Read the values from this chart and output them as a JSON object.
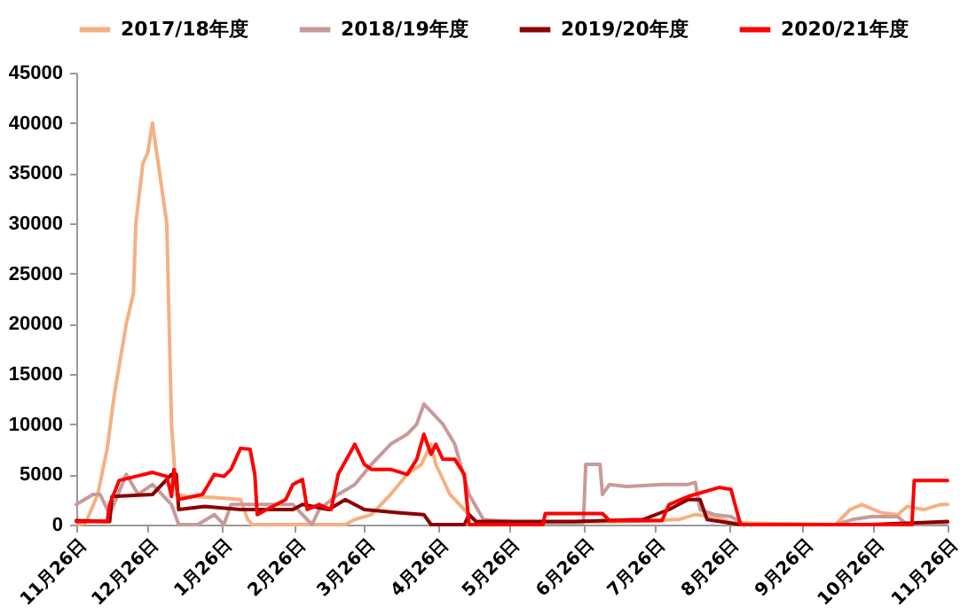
{
  "chart_data": {
    "type": "line",
    "xlim": [
      "2019-11-26",
      "2020-11-26"
    ],
    "xticks": [
      {
        "value": "2019-11-26",
        "label": "11月26日"
      },
      {
        "value": "2019-12-26",
        "label": "12月26日"
      },
      {
        "value": "2020-01-26",
        "label": "1月26日"
      },
      {
        "value": "2020-02-26",
        "label": "2月26日"
      },
      {
        "value": "2020-03-26",
        "label": "3月26日"
      },
      {
        "value": "2020-04-26",
        "label": "4月26日"
      },
      {
        "value": "2020-05-26",
        "label": "5月26日"
      },
      {
        "value": "2020-06-26",
        "label": "6月26日"
      },
      {
        "value": "2020-07-26",
        "label": "7月26日"
      },
      {
        "value": "2020-08-26",
        "label": "8月26日"
      },
      {
        "value": "2020-09-26",
        "label": "9月26日"
      },
      {
        "value": "2020-10-26",
        "label": "10月26日"
      },
      {
        "value": "2020-11-26",
        "label": "11月26日"
      }
    ],
    "ylim": [
      0,
      45000
    ],
    "yticks": [
      0,
      5000,
      10000,
      15000,
      20000,
      25000,
      30000,
      35000,
      40000,
      45000
    ],
    "grid": false,
    "legend": "top",
    "series": [
      {
        "name": "2017/18年度",
        "color": "#f4b183",
        "x": [
          "2019-11-27",
          "2019-11-30",
          "2019-12-05",
          "2019-12-09",
          "2019-12-12",
          "2019-12-17",
          "2019-12-20",
          "2019-12-21",
          "2019-12-24",
          "2019-12-26",
          "2019-12-28",
          "2019-12-31",
          "2020-01-03",
          "2020-01-05",
          "2020-01-07",
          "2020-01-12",
          "2020-01-23",
          "2020-02-03",
          "2020-02-06",
          "2020-02-08",
          "2020-03-18",
          "2020-03-22",
          "2020-03-29",
          "2020-04-06",
          "2020-04-13",
          "2020-04-19",
          "2020-04-23",
          "2020-04-25",
          "2020-05-01",
          "2020-05-07",
          "2020-05-12",
          "2020-05-23",
          "2020-06-14",
          "2020-07-14",
          "2020-08-05",
          "2020-08-12",
          "2020-08-20",
          "2020-08-27",
          "2020-09-11",
          "2020-10-10",
          "2020-10-16",
          "2020-10-21",
          "2020-10-29",
          "2020-11-05",
          "2020-11-09",
          "2020-11-16",
          "2020-11-23",
          "2020-11-26"
        ],
        "values": [
          0,
          200,
          3000,
          7600,
          13000,
          20000,
          23000,
          30000,
          36000,
          37000,
          40000,
          35000,
          30000,
          10000,
          3000,
          2800,
          2700,
          2500,
          500,
          0,
          0,
          500,
          1000,
          3000,
          5000,
          6000,
          8000,
          6000,
          3000,
          1500,
          200,
          0,
          200,
          300,
          500,
          1000,
          800,
          200,
          100,
          0,
          1500,
          2000,
          1200,
          1000,
          1800,
          1500,
          2000,
          2000
        ]
      },
      {
        "name": "2018/19年度",
        "color": "#c99a9a",
        "x": [
          "2019-11-26",
          "2019-12-03",
          "2019-12-06",
          "2019-12-10",
          "2019-12-17",
          "2019-12-22",
          "2019-12-28",
          "2020-01-05",
          "2020-01-08",
          "2020-01-16",
          "2020-01-23",
          "2020-01-27",
          "2020-01-30",
          "2020-02-10",
          "2020-02-25",
          "2020-03-04",
          "2020-03-07",
          "2020-03-15",
          "2020-03-22",
          "2020-03-29",
          "2020-04-06",
          "2020-04-13",
          "2020-04-17",
          "2020-04-20",
          "2020-04-24",
          "2020-04-28",
          "2020-05-03",
          "2020-05-09",
          "2020-05-15",
          "2020-05-31",
          "2020-06-26",
          "2020-06-27",
          "2020-07-03",
          "2020-07-04",
          "2020-07-07",
          "2020-07-14",
          "2020-07-29",
          "2020-08-09",
          "2020-08-12",
          "2020-08-14",
          "2020-08-20",
          "2020-08-27",
          "2020-09-02",
          "2020-10-10",
          "2020-10-17",
          "2020-10-25",
          "2020-11-05",
          "2020-11-09",
          "2020-11-26"
        ],
        "values": [
          2000,
          3000,
          3000,
          1000,
          5000,
          3000,
          4000,
          2000,
          0,
          0,
          1000,
          0,
          2000,
          2000,
          2000,
          0,
          1500,
          3000,
          4000,
          6000,
          8000,
          9000,
          10000,
          12000,
          11000,
          10000,
          8000,
          3000,
          500,
          200,
          200,
          6000,
          6000,
          3000,
          4000,
          3800,
          4000,
          4000,
          4200,
          1500,
          1000,
          800,
          0,
          0,
          500,
          800,
          800,
          0,
          200
        ]
      },
      {
        "name": "2019/20年度",
        "color": "#8b0000",
        "x": [
          "2019-11-26",
          "2019-12-10",
          "2019-12-11",
          "2019-12-28",
          "2020-01-05",
          "2020-01-07",
          "2020-01-08",
          "2020-01-19",
          "2020-02-03",
          "2020-02-25",
          "2020-02-29",
          "2020-03-11",
          "2020-03-18",
          "2020-03-26",
          "2020-04-09",
          "2020-04-20",
          "2020-04-23",
          "2020-05-07",
          "2020-05-09",
          "2020-05-12",
          "2020-06-22",
          "2020-07-21",
          "2020-08-01",
          "2020-08-09",
          "2020-08-14",
          "2020-08-17",
          "2020-08-31",
          "2020-10-25",
          "2020-11-26"
        ],
        "values": [
          400,
          300,
          2800,
          3000,
          5000,
          5000,
          1500,
          1800,
          1500,
          1500,
          2000,
          1500,
          2500,
          1500,
          1200,
          1000,
          0,
          0,
          1000,
          300,
          300,
          500,
          1500,
          2500,
          2500,
          500,
          0,
          0,
          300
        ]
      },
      {
        "name": "2020/21年度",
        "color": "#ff0000",
        "x": [
          "2019-11-26",
          "2019-12-09",
          "2019-12-10",
          "2019-12-14",
          "2019-12-21",
          "2019-12-28",
          "2020-01-03",
          "2020-01-05",
          "2020-01-06",
          "2020-01-08",
          "2020-01-18",
          "2020-01-23",
          "2020-01-27",
          "2020-01-30",
          "2020-02-03",
          "2020-02-07",
          "2020-02-09",
          "2020-02-10",
          "2020-02-14",
          "2020-02-22",
          "2020-02-25",
          "2020-02-29",
          "2020-03-02",
          "2020-03-07",
          "2020-03-12",
          "2020-03-15",
          "2020-03-22",
          "2020-03-26",
          "2020-03-29",
          "2020-04-06",
          "2020-04-13",
          "2020-04-17",
          "2020-04-20",
          "2020-04-23",
          "2020-04-25",
          "2020-04-28",
          "2020-05-03",
          "2020-05-07",
          "2020-05-09",
          "2020-06-09",
          "2020-06-10",
          "2020-07-04",
          "2020-07-07",
          "2020-07-29",
          "2020-08-01",
          "2020-08-09",
          "2020-08-22",
          "2020-08-27",
          "2020-08-31",
          "2020-11-11",
          "2020-11-12",
          "2020-11-26"
        ],
        "values": [
          300,
          300,
          2000,
          4400,
          4800,
          5200,
          4800,
          2800,
          5500,
          2500,
          3000,
          5000,
          4800,
          5500,
          7600,
          7500,
          5000,
          1000,
          1500,
          2500,
          4000,
          4500,
          1500,
          2000,
          1500,
          5000,
          8000,
          6000,
          5500,
          5500,
          5000,
          6500,
          9000,
          7000,
          8000,
          6500,
          6500,
          5000,
          0,
          0,
          1100,
          1100,
          400,
          400,
          2000,
          2800,
          3700,
          3500,
          0,
          0,
          4400,
          4400
        ]
      }
    ]
  }
}
